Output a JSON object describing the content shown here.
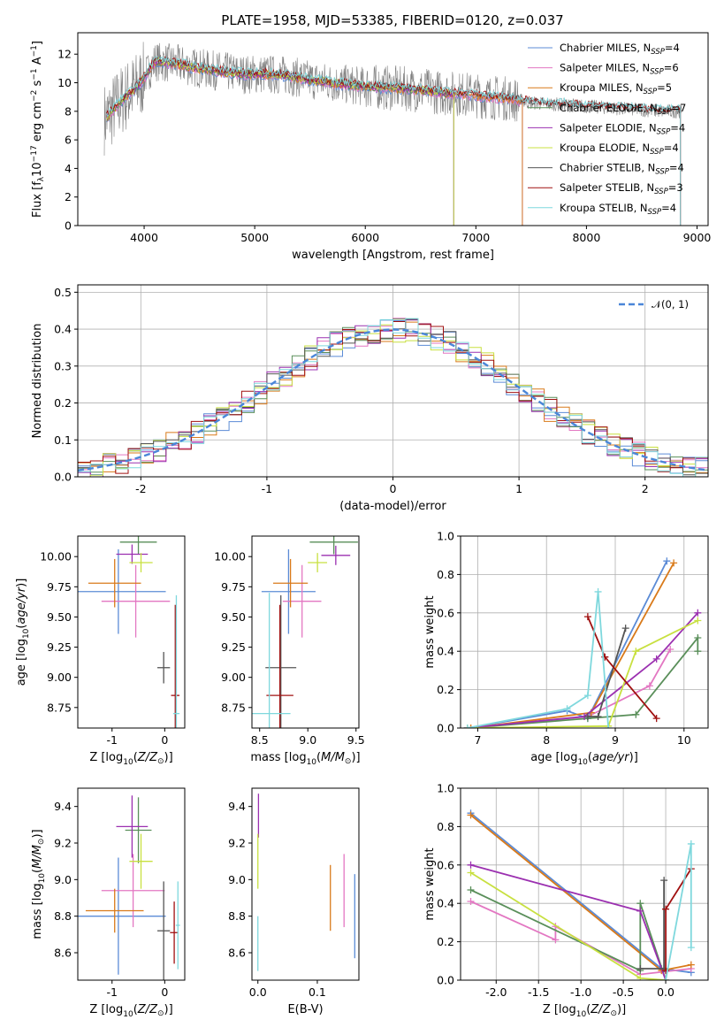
{
  "chart_data": [
    {
      "id": "spectrum",
      "type": "line",
      "title": "PLATE=1958, MJD=53385, FIBERID=0120, z=0.037",
      "xlabel": "wavelength [Angstrom, rest frame]",
      "ylabel": "Flux [f_λ10^-17 erg cm^-2 s^-1 A^-1]",
      "xlim": [
        3400,
        9100
      ],
      "ylim": [
        0,
        13.5
      ],
      "xticks": [
        4000,
        5000,
        6000,
        7000,
        8000,
        9000
      ],
      "yticks": [
        0,
        2,
        4,
        6,
        8,
        10,
        12
      ],
      "x": [
        3650,
        3800,
        3950,
        4100,
        4300,
        4500,
        4700,
        4900,
        5100,
        5300,
        5500,
        5700,
        5900,
        6100,
        6300,
        6500,
        6700,
        6900,
        7100,
        7300,
        7500,
        7700,
        7900,
        8100,
        8300,
        8500,
        8700,
        8850
      ],
      "data": [
        7.5,
        8.8,
        9.8,
        11.5,
        11.3,
        11.0,
        10.8,
        10.6,
        10.6,
        10.5,
        10.2,
        10.0,
        9.8,
        9.7,
        9.6,
        9.5,
        9.3,
        9.2,
        9.0,
        8.9,
        8.6,
        8.5,
        8.4,
        8.3,
        8.2,
        8.1,
        8.0,
        8.0
      ],
      "legend_position": "upper right",
      "series": [
        {
          "name": "Chabrier MILES, N_SSP=4",
          "label_main": "Chabrier MILES, N",
          "label_sub": "SSP",
          "label_tail": "=4",
          "color": "#5b8bd6",
          "end": 7420
        },
        {
          "name": "Salpeter MILES, N_SSP=6",
          "label_main": "Salpeter MILES, N",
          "label_sub": "SSP",
          "label_tail": "=6",
          "color": "#e377c2",
          "end": 7420
        },
        {
          "name": "Kroupa MILES, N_SSP=5",
          "label_main": "Kroupa MILES, N",
          "label_sub": "SSP",
          "label_tail": "=5",
          "color": "#d97a1a",
          "end": 7420
        },
        {
          "name": "Chabrier ELODIE, N_SSP=7",
          "label_main": "Chabrier ELODIE, N",
          "label_sub": "SSP",
          "label_tail": "=7",
          "color": "#5a8f5a",
          "end": 6800
        },
        {
          "name": "Salpeter ELODIE, N_SSP=4",
          "label_main": "Salpeter ELODIE, N",
          "label_sub": "SSP",
          "label_tail": "=4",
          "color": "#9b30b0",
          "end": 6800
        },
        {
          "name": "Kroupa ELODIE, N_SSP=4",
          "label_main": "Kroupa ELODIE, N",
          "label_sub": "SSP",
          "label_tail": "=4",
          "color": "#c8e040",
          "end": 6800
        },
        {
          "name": "Chabrier STELIB, N_SSP=4",
          "label_main": "Chabrier STELIB, N",
          "label_sub": "SSP",
          "label_tail": "=4",
          "color": "#555555",
          "end": 8850
        },
        {
          "name": "Salpeter STELIB, N_SSP=3",
          "label_main": "Salpeter STELIB, N",
          "label_sub": "SSP",
          "label_tail": "=3",
          "color": "#a01010",
          "end": 8850
        },
        {
          "name": "Kroupa STELIB, N_SSP=4",
          "label_main": "Kroupa STELIB, N",
          "label_sub": "SSP",
          "label_tail": "=4",
          "color": "#7fd8dd",
          "end": 8850
        }
      ]
    },
    {
      "id": "residuals",
      "type": "histogram",
      "xlabel": "(data-model)/error",
      "ylabel": "Normed distribution",
      "xlim": [
        -2.5,
        2.5
      ],
      "ylim": [
        0,
        0.52
      ],
      "xticks": [
        -2,
        -1,
        0,
        1,
        2
      ],
      "yticks": [
        0.0,
        0.1,
        0.2,
        0.3,
        0.4,
        0.5
      ],
      "bin_width": 0.1,
      "reference_curve": {
        "name": "N(0,1)",
        "label": "𝒩(0, 1)",
        "color": "#4a86d8"
      },
      "grid": true
    },
    {
      "id": "Z-age",
      "type": "errorbar",
      "xlabel": "Z [log10(Z/Z⊙)]",
      "ylabel": "age [log10(age/yr)]",
      "xlim": [
        -1.65,
        0.38
      ],
      "ylim": [
        8.58,
        10.17
      ],
      "xticks": [
        -1,
        0
      ],
      "yticks": [
        8.75,
        9.0,
        9.25,
        9.5,
        9.75,
        10.0
      ],
      "points": [
        {
          "x": -0.88,
          "xerr": 0.9,
          "y": 9.71,
          "yerr": 0.35,
          "color": "#5b8bd6"
        },
        {
          "x": -0.55,
          "xerr": 0.65,
          "y": 9.63,
          "yerr": 0.3,
          "color": "#e377c2"
        },
        {
          "x": -0.95,
          "xerr": 0.5,
          "y": 9.78,
          "yerr": 0.2,
          "color": "#d97a1a"
        },
        {
          "x": -0.5,
          "xerr": 0.35,
          "y": 10.12,
          "yerr": 0.1,
          "color": "#5a8f5a"
        },
        {
          "x": -0.62,
          "xerr": 0.3,
          "y": 10.02,
          "yerr": 0.08,
          "color": "#9b30b0"
        },
        {
          "x": -0.45,
          "xerr": 0.22,
          "y": 9.95,
          "yerr": 0.08,
          "color": "#c8e040"
        },
        {
          "x": -0.02,
          "xerr": 0.12,
          "y": 9.08,
          "yerr": 0.13,
          "color": "#555555"
        },
        {
          "x": 0.2,
          "xerr": 0.08,
          "y": 8.85,
          "yerr": 0.75,
          "color": "#a01010"
        },
        {
          "x": 0.22,
          "xerr": 0.06,
          "y": 8.7,
          "yerr": 0.98,
          "color": "#7fd8dd"
        }
      ]
    },
    {
      "id": "mass-age",
      "type": "errorbar",
      "xlabel": "mass [log10(M/M⊙)]",
      "ylabel": "",
      "xlim": [
        8.42,
        9.53
      ],
      "ylim": [
        8.58,
        10.17
      ],
      "xticks": [
        8.5,
        9.0,
        9.5
      ],
      "yticks": [
        8.75,
        9.0,
        9.25,
        9.5,
        9.75,
        10.0
      ],
      "points": [
        {
          "x": 8.8,
          "xerr": 0.28,
          "y": 9.71,
          "yerr": 0.35,
          "color": "#5b8bd6"
        },
        {
          "x": 8.94,
          "xerr": 0.2,
          "y": 9.63,
          "yerr": 0.3,
          "color": "#e377c2"
        },
        {
          "x": 8.82,
          "xerr": 0.18,
          "y": 9.78,
          "yerr": 0.2,
          "color": "#d97a1a"
        },
        {
          "x": 9.27,
          "xerr": 0.25,
          "y": 10.12,
          "yerr": 0.1,
          "color": "#5a8f5a"
        },
        {
          "x": 9.29,
          "xerr": 0.15,
          "y": 10.01,
          "yerr": 0.08,
          "color": "#9b30b0"
        },
        {
          "x": 9.1,
          "xerr": 0.1,
          "y": 9.95,
          "yerr": 0.08,
          "color": "#c8e040"
        },
        {
          "x": 8.72,
          "xerr": 0.16,
          "y": 9.08,
          "yerr": 0.6,
          "color": "#555555"
        },
        {
          "x": 8.71,
          "xerr": 0.14,
          "y": 8.85,
          "yerr": 0.75,
          "color": "#a01010"
        },
        {
          "x": 8.6,
          "xerr": 0.22,
          "y": 8.7,
          "yerr": 1.0,
          "color": "#7fd8dd"
        }
      ]
    },
    {
      "id": "weight-age",
      "type": "line",
      "xlabel": "age [log10(age/yr)]",
      "ylabel": "mass weight",
      "xlim": [
        6.75,
        10.35
      ],
      "ylim": [
        0,
        1.0
      ],
      "xticks": [
        7,
        8,
        9,
        10
      ],
      "yticks": [
        0.0,
        0.2,
        0.4,
        0.6,
        0.8,
        1.0
      ],
      "series": [
        {
          "color": "#5b8bd6",
          "x": [
            6.85,
            8.3,
            8.6,
            9.75
          ],
          "y": [
            0.0,
            0.09,
            0.05,
            0.87
          ]
        },
        {
          "color": "#e377c2",
          "x": [
            6.85,
            8.6,
            9.5,
            9.8
          ],
          "y": [
            0.0,
            0.06,
            0.22,
            0.41
          ]
        },
        {
          "color": "#d97a1a",
          "x": [
            6.9,
            8.65,
            9.85
          ],
          "y": [
            0.0,
            0.08,
            0.86
          ]
        },
        {
          "color": "#5a8f5a",
          "x": [
            6.85,
            8.6,
            9.3,
            10.2,
            10.2
          ],
          "y": [
            0.0,
            0.05,
            0.07,
            0.47,
            0.4
          ]
        },
        {
          "color": "#9b30b0",
          "x": [
            6.85,
            8.55,
            9.6,
            10.2
          ],
          "y": [
            0.0,
            0.06,
            0.36,
            0.6
          ]
        },
        {
          "color": "#c8e040",
          "x": [
            6.85,
            8.9,
            9.3,
            10.2
          ],
          "y": [
            0.0,
            0.01,
            0.4,
            0.56
          ]
        },
        {
          "color": "#555555",
          "x": [
            8.6,
            8.75,
            9.15
          ],
          "y": [
            0.06,
            0.06,
            0.52
          ]
        },
        {
          "color": "#a01010",
          "x": [
            8.6,
            8.85,
            9.6
          ],
          "y": [
            0.58,
            0.37,
            0.05
          ]
        },
        {
          "color": "#7fd8dd",
          "x": [
            6.85,
            8.3,
            8.6,
            8.75,
            8.9
          ],
          "y": [
            0.0,
            0.1,
            0.17,
            0.71,
            0.0
          ]
        }
      ],
      "grid": true
    },
    {
      "id": "Z-mass",
      "type": "errorbar",
      "xlabel": "Z [log10(Z/Z⊙)]",
      "ylabel": "mass [log10(M/M⊙)]",
      "xlim": [
        -1.65,
        0.38
      ],
      "ylim": [
        8.45,
        9.5
      ],
      "xticks": [
        -1,
        0
      ],
      "yticks": [
        8.6,
        8.8,
        9.0,
        9.2,
        9.4
      ],
      "points": [
        {
          "x": -0.88,
          "xerr": 0.9,
          "y": 8.8,
          "yerr": 0.32,
          "color": "#5b8bd6"
        },
        {
          "x": -0.6,
          "xerr": 0.6,
          "y": 8.94,
          "yerr": 0.2,
          "color": "#e377c2"
        },
        {
          "x": -0.95,
          "xerr": 0.55,
          "y": 8.83,
          "yerr": 0.12,
          "color": "#d97a1a"
        },
        {
          "x": -0.5,
          "xerr": 0.25,
          "y": 9.27,
          "yerr": 0.18,
          "color": "#5a8f5a"
        },
        {
          "x": -0.62,
          "xerr": 0.3,
          "y": 9.29,
          "yerr": 0.17,
          "color": "#9b30b0"
        },
        {
          "x": -0.45,
          "xerr": 0.22,
          "y": 9.1,
          "yerr": 0.15,
          "color": "#c8e040"
        },
        {
          "x": -0.02,
          "xerr": 0.12,
          "y": 8.72,
          "yerr": 0.27,
          "color": "#555555"
        },
        {
          "x": 0.18,
          "xerr": 0.08,
          "y": 8.71,
          "yerr": 0.17,
          "color": "#a01010"
        },
        {
          "x": 0.25,
          "xerr": 0.04,
          "y": 8.75,
          "yerr": 0.24,
          "color": "#7fd8dd"
        }
      ]
    },
    {
      "id": "EBV-mass",
      "type": "errorbar",
      "xlabel": "E(B-V)",
      "ylabel": "",
      "xlim": [
        -0.01,
        0.17
      ],
      "ylim": [
        8.45,
        9.5
      ],
      "xticks": [
        0.0,
        0.1
      ],
      "yticks": [
        8.6,
        8.8,
        9.0,
        9.2,
        9.4
      ],
      "points": [
        {
          "x": 0.163,
          "xerr": 0,
          "y": 8.8,
          "yerr": 0.23,
          "color": "#5b8bd6"
        },
        {
          "x": 0.145,
          "xerr": 0,
          "y": 8.94,
          "yerr": 0.2,
          "color": "#e377c2"
        },
        {
          "x": 0.122,
          "xerr": 0,
          "y": 8.9,
          "yerr": 0.18,
          "color": "#d97a1a"
        },
        {
          "x": 0.001,
          "xerr": 0,
          "y": 9.35,
          "yerr": 0.12,
          "color": "#9b30b0"
        },
        {
          "x": 0.0,
          "xerr": 0,
          "y": 9.1,
          "yerr": 0.15,
          "color": "#c8e040"
        },
        {
          "x": 0.0,
          "xerr": 0,
          "y": 8.65,
          "yerr": 0.15,
          "color": "#7fd8dd"
        }
      ]
    },
    {
      "id": "weight-Z",
      "type": "line",
      "xlabel": "Z [log10(Z/Z⊙)]",
      "ylabel": "mass weight",
      "xlim": [
        -2.42,
        0.5
      ],
      "ylim": [
        0,
        1.0
      ],
      "xticks": [
        -2.0,
        -1.5,
        -1.0,
        -0.5,
        0.0
      ],
      "yticks": [
        0.0,
        0.2,
        0.4,
        0.6,
        0.8,
        1.0
      ],
      "series": [
        {
          "color": "#5b8bd6",
          "x": [
            -2.3,
            -0.05,
            0.3
          ],
          "y": [
            0.87,
            0.06,
            0.04
          ]
        },
        {
          "color": "#e377c2",
          "x": [
            -2.3,
            -1.3,
            -1.3,
            -0.3,
            0.3
          ],
          "y": [
            0.41,
            0.21,
            0.28,
            0.03,
            0.06
          ]
        },
        {
          "color": "#d97a1a",
          "x": [
            -2.3,
            -0.05,
            0.3
          ],
          "y": [
            0.86,
            0.05,
            0.08
          ]
        },
        {
          "color": "#5a8f5a",
          "x": [
            -2.3,
            -0.3,
            -0.3,
            0.0
          ],
          "y": [
            0.47,
            0.05,
            0.4,
            0.0
          ]
        },
        {
          "color": "#9b30b0",
          "x": [
            -2.3,
            -0.3,
            0.0
          ],
          "y": [
            0.6,
            0.36,
            0.0
          ]
        },
        {
          "color": "#c8e040",
          "x": [
            -2.3,
            -0.3,
            0.0
          ],
          "y": [
            0.56,
            0.01,
            0.0
          ]
        },
        {
          "color": "#555555",
          "x": [
            -0.3,
            -0.02,
            -0.02
          ],
          "y": [
            0.06,
            0.06,
            0.52
          ]
        },
        {
          "color": "#a01010",
          "x": [
            0.0,
            0.0,
            0.3
          ],
          "y": [
            0.05,
            0.37,
            0.58
          ]
        },
        {
          "color": "#7fd8dd",
          "x": [
            0.0,
            0.3,
            0.3
          ],
          "y": [
            0.0,
            0.71,
            0.17
          ]
        }
      ],
      "grid": true
    }
  ]
}
